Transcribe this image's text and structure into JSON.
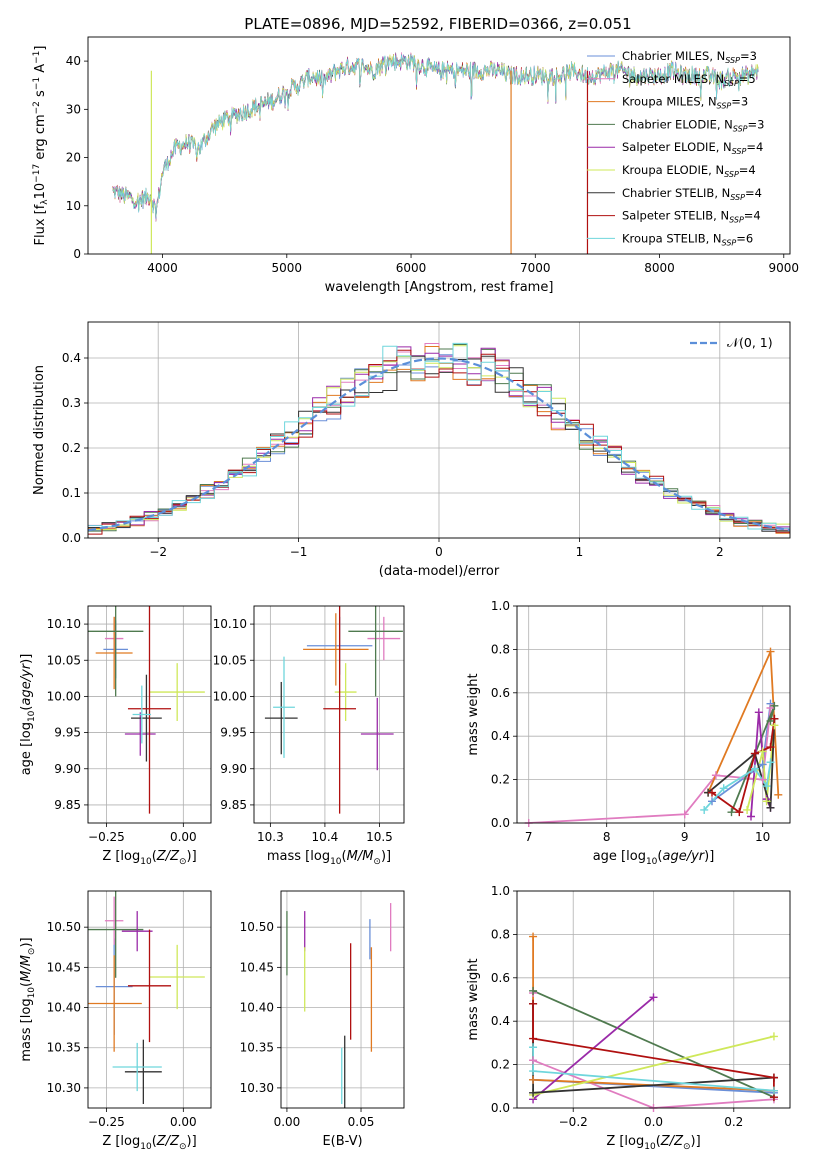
{
  "figure_title": "PLATE=0896, MJD=52592, FIBERID=0366, z=0.051",
  "colors": {
    "Chabrier MILES": "#6a8fd8",
    "Salpeter MILES": "#e07cc0",
    "Kroupa MILES": "#e07a22",
    "Chabrier ELODIE": "#4f7a4f",
    "Salpeter ELODIE": "#9a2aa8",
    "Kroupa ELODIE": "#cfe85a",
    "Chabrier STELIB": "#333333",
    "Salpeter STELIB": "#b01010",
    "Kroupa STELIB": "#6fd6dc"
  },
  "chart_data": [
    {
      "id": "spectrum",
      "type": "line",
      "title": "PLATE=0896, MJD=52592, FIBERID=0366, z=0.051",
      "xlabel": "wavelength [Angstrom, rest frame]",
      "ylabel": "Flux [fλ10⁻¹⁷ erg cm⁻² s⁻¹ A⁻¹]",
      "xlim": [
        3400,
        9050
      ],
      "ylim": [
        0,
        45
      ],
      "xticks": [
        4000,
        5000,
        6000,
        7000,
        8000,
        9000
      ],
      "yticks": [
        0,
        10,
        20,
        30,
        40
      ],
      "grid": false,
      "legend_position": "right",
      "continuum": {
        "x": [
          3600,
          3700,
          3800,
          3900,
          3950,
          4000,
          4100,
          4200,
          4300,
          4400,
          4500,
          4600,
          4700,
          4800,
          4900,
          5000,
          5100,
          5200,
          5300,
          5400,
          5500,
          5600,
          5700,
          5800,
          5900,
          6000,
          6100,
          6200,
          6300,
          6400,
          6500,
          6600,
          6700,
          6800,
          6900,
          7000,
          7100,
          7200,
          7300,
          7400,
          7500,
          7600,
          7700,
          7800,
          7900,
          8000,
          8100,
          8200,
          8300,
          8400,
          8500,
          8600,
          8700,
          8800
        ],
        "y": [
          13,
          12,
          11,
          12,
          9,
          17,
          22,
          23,
          22,
          26,
          28,
          29,
          30,
          31,
          32,
          34,
          35,
          37,
          36,
          38,
          39,
          39,
          38,
          40,
          40,
          40,
          39,
          38,
          38,
          38,
          38,
          38,
          38,
          37,
          37,
          37,
          37,
          37,
          38,
          37,
          37,
          38,
          38,
          37,
          37,
          37,
          38,
          37,
          37,
          37,
          36,
          37,
          37,
          38
        ]
      },
      "series": [
        {
          "name": "Chabrier MILES, N_SSP=3"
        },
        {
          "name": "Salpeter MILES, N_SSP=5"
        },
        {
          "name": "Kroupa MILES, N_SSP=3"
        },
        {
          "name": "Chabrier ELODIE, N_SSP=3"
        },
        {
          "name": "Salpeter ELODIE, N_SSP=4"
        },
        {
          "name": "Kroupa ELODIE, N_SSP=4"
        },
        {
          "name": "Chabrier STELIB, N_SSP=4"
        },
        {
          "name": "Salpeter STELIB, N_SSP=4"
        },
        {
          "name": "Kroupa STELIB, N_SSP=6"
        }
      ]
    },
    {
      "id": "residuals",
      "type": "line",
      "xlabel": "(data-model)/error",
      "ylabel": "Normed distribution",
      "xlim": [
        -2.5,
        2.5
      ],
      "ylim": [
        0,
        0.48
      ],
      "xticks": [
        -2,
        -1,
        0,
        1,
        2
      ],
      "yticks": [
        0.0,
        0.1,
        0.2,
        0.3,
        0.4
      ],
      "grid": true,
      "legend_position": "top-right",
      "series": [
        {
          "name": "N(0,1)",
          "style": "dashed",
          "color": "#5b8fd9"
        }
      ]
    },
    {
      "id": "age-vs-Z",
      "type": "scatter",
      "xlabel": "Z [log10(Z/Z⊙)]",
      "ylabel": "age  [log10(age/yr)]",
      "xlim": [
        -0.31,
        0.09
      ],
      "ylim": [
        9.825,
        10.125
      ],
      "xticks": [
        -0.25,
        0.0
      ],
      "yticks": [
        9.85,
        9.9,
        9.95,
        10.0,
        10.05,
        10.1
      ],
      "grid": true,
      "points": [
        {
          "model": "Chabrier MILES",
          "x": -0.22,
          "xerr": 0.04,
          "y": 10.065,
          "yerr": 0.04
        },
        {
          "model": "Salpeter MILES",
          "x": -0.225,
          "xerr": 0.03,
          "y": 10.08,
          "yerr": 0.03
        },
        {
          "model": "Kroupa MILES",
          "x": -0.225,
          "xerr": 0.06,
          "y": 10.06,
          "yerr": 0.05
        },
        {
          "model": "Chabrier ELODIE",
          "x": -0.22,
          "xerr": 0.09,
          "y": 10.09,
          "yerr": 0.09
        },
        {
          "model": "Salpeter ELODIE",
          "x": -0.14,
          "xerr": 0.05,
          "y": 9.948,
          "yerr": 0.03
        },
        {
          "model": "Kroupa ELODIE",
          "x": -0.02,
          "xerr": 0.09,
          "y": 10.006,
          "yerr": 0.04
        },
        {
          "model": "Chabrier STELIB",
          "x": -0.12,
          "xerr": 0.05,
          "y": 9.97,
          "yerr": 0.06
        },
        {
          "model": "Salpeter STELIB",
          "x": -0.11,
          "xerr": 0.07,
          "y": 9.983,
          "yerr": 0.145
        },
        {
          "model": "Kroupa STELIB",
          "x": -0.135,
          "xerr": 0.03,
          "y": 9.975,
          "yerr": 0.04
        }
      ]
    },
    {
      "id": "age-vs-mass",
      "type": "scatter",
      "xlabel": "mass [log10(M/M⊙)]",
      "ylabel": "",
      "xlim": [
        10.27,
        10.545
      ],
      "ylim": [
        9.825,
        10.125
      ],
      "xticks": [
        10.3,
        10.4,
        10.5
      ],
      "yticks": [
        9.85,
        9.9,
        9.95,
        10.0,
        10.05,
        10.1
      ],
      "grid": true,
      "points": [
        {
          "model": "Chabrier MILES",
          "x": 10.427,
          "xerr": 0.06,
          "y": 10.07,
          "yerr": 0.04
        },
        {
          "model": "Salpeter MILES",
          "x": 10.508,
          "xerr": 0.03,
          "y": 10.08,
          "yerr": 0.03
        },
        {
          "model": "Kroupa MILES",
          "x": 10.42,
          "xerr": 0.06,
          "y": 10.065,
          "yerr": 0.05
        },
        {
          "model": "Chabrier ELODIE",
          "x": 10.493,
          "xerr": 0.05,
          "y": 10.09,
          "yerr": 0.09
        },
        {
          "model": "Salpeter ELODIE",
          "x": 10.496,
          "xerr": 0.03,
          "y": 9.948,
          "yerr": 0.05
        },
        {
          "model": "Kroupa ELODIE",
          "x": 10.438,
          "xerr": 0.02,
          "y": 10.006,
          "yerr": 0.04
        },
        {
          "model": "Chabrier STELIB",
          "x": 10.32,
          "xerr": 0.03,
          "y": 9.97,
          "yerr": 0.05
        },
        {
          "model": "Salpeter STELIB",
          "x": 10.427,
          "xerr": 0.03,
          "y": 9.983,
          "yerr": 0.145
        },
        {
          "model": "Kroupa STELIB",
          "x": 10.325,
          "xerr": 0.02,
          "y": 9.985,
          "yerr": 0.07
        }
      ]
    },
    {
      "id": "massweight-vs-age",
      "type": "line",
      "xlabel": "age  [log10(age/yr)]",
      "ylabel": "mass weight",
      "xlim": [
        6.85,
        10.35
      ],
      "ylim": [
        0,
        1
      ],
      "xticks": [
        7,
        8,
        9,
        10
      ],
      "yticks": [
        0.0,
        0.2,
        0.4,
        0.6,
        0.8,
        1.0
      ],
      "grid": true,
      "series": [
        {
          "name": "Chabrier MILES",
          "x": [
            9.35,
            10.0,
            10.1
          ],
          "y": [
            0.1,
            0.27,
            0.55
          ]
        },
        {
          "name": "Salpeter MILES",
          "x": [
            7.0,
            9.0,
            9.4,
            10.0,
            10.1
          ],
          "y": [
            0.0,
            0.04,
            0.22,
            0.2,
            0.53
          ]
        },
        {
          "name": "Kroupa MILES",
          "x": [
            9.3,
            10.1,
            10.2
          ],
          "y": [
            0.14,
            0.79,
            0.13
          ]
        },
        {
          "name": "Chabrier ELODIE",
          "x": [
            9.6,
            10.15,
            10.1
          ],
          "y": [
            0.05,
            0.54,
            0.47
          ]
        },
        {
          "name": "Salpeter ELODIE",
          "x": [
            9.85,
            9.95,
            10.05,
            10.1
          ],
          "y": [
            0.03,
            0.51,
            0.11,
            0.07
          ]
        },
        {
          "name": "Kroupa ELODIE",
          "x": [
            9.8,
            10.0,
            10.05,
            10.15
          ],
          "y": [
            0.06,
            0.33,
            0.1,
            0.45
          ]
        },
        {
          "name": "Chabrier STELIB",
          "x": [
            9.3,
            9.9,
            10.1,
            10.15
          ],
          "y": [
            0.14,
            0.32,
            0.07,
            0.48
          ]
        },
        {
          "name": "Salpeter STELIB",
          "x": [
            9.35,
            9.7,
            9.9,
            10.1,
            10.15
          ],
          "y": [
            0.14,
            0.05,
            0.32,
            0.35,
            0.48
          ]
        },
        {
          "name": "Kroupa STELIB",
          "x": [
            9.25,
            9.5,
            9.9,
            10.05,
            10.1
          ],
          "y": [
            0.06,
            0.16,
            0.25,
            0.17,
            0.28
          ]
        }
      ]
    },
    {
      "id": "mass-vs-Z",
      "type": "scatter",
      "xlabel": "Z [log10(Z/Z⊙)]",
      "ylabel": "mass [log10(M/M⊙)]",
      "xlim": [
        -0.31,
        0.09
      ],
      "ylim": [
        10.275,
        10.545
      ],
      "xticks": [
        -0.25,
        0.0
      ],
      "yticks": [
        10.3,
        10.35,
        10.4,
        10.45,
        10.5
      ],
      "grid": true,
      "points": [
        {
          "model": "Chabrier MILES",
          "x": -0.225,
          "xerr": 0.06,
          "y": 10.426,
          "yerr": 0.06
        },
        {
          "model": "Salpeter MILES",
          "x": -0.225,
          "xerr": 0.03,
          "y": 10.508,
          "yerr": 0.03
        },
        {
          "model": "Kroupa MILES",
          "x": -0.225,
          "xerr": 0.09,
          "y": 10.405,
          "yerr": 0.06
        },
        {
          "model": "Chabrier ELODIE",
          "x": -0.22,
          "xerr": 0.09,
          "y": 10.497,
          "yerr": 0.06
        },
        {
          "model": "Salpeter ELODIE",
          "x": -0.15,
          "xerr": 0.05,
          "y": 10.495,
          "yerr": 0.025
        },
        {
          "model": "Kroupa ELODIE",
          "x": -0.02,
          "xerr": 0.09,
          "y": 10.438,
          "yerr": 0.04
        },
        {
          "model": "Chabrier STELIB",
          "x": -0.13,
          "xerr": 0.06,
          "y": 10.32,
          "yerr": 0.04
        },
        {
          "model": "Salpeter STELIB",
          "x": -0.11,
          "xerr": 0.07,
          "y": 10.427,
          "yerr": 0.07
        },
        {
          "model": "Kroupa STELIB",
          "x": -0.15,
          "xerr": 0.08,
          "y": 10.326,
          "yerr": 0.03
        }
      ]
    },
    {
      "id": "mass-vs-EBV",
      "type": "scatter",
      "xlabel": "E(B-V)",
      "ylabel": "",
      "xlim": [
        -0.004,
        0.079
      ],
      "ylim": [
        10.275,
        10.545
      ],
      "xticks": [
        0.0,
        0.05
      ],
      "yticks": [
        10.3,
        10.35,
        10.4,
        10.45,
        10.5
      ],
      "grid": true,
      "points": [
        {
          "model": "Chabrier MILES",
          "x": 0.056,
          "y": 10.485,
          "yerr": 0.025
        },
        {
          "model": "Salpeter MILES",
          "x": 0.07,
          "y": 10.5,
          "yerr": 0.03
        },
        {
          "model": "Kroupa MILES",
          "x": 0.057,
          "y": 10.41,
          "yerr": 0.065
        },
        {
          "model": "Chabrier ELODIE",
          "x": 0.0,
          "y": 10.48,
          "yerr": 0.04
        },
        {
          "model": "Salpeter ELODIE",
          "x": 0.012,
          "y": 10.495,
          "yerr": 0.025
        },
        {
          "model": "Kroupa ELODIE",
          "x": 0.012,
          "y": 10.435,
          "yerr": 0.04
        },
        {
          "model": "Chabrier STELIB",
          "x": 0.039,
          "y": 10.32,
          "yerr": 0.045
        },
        {
          "model": "Salpeter STELIB",
          "x": 0.043,
          "y": 10.42,
          "yerr": 0.06
        },
        {
          "model": "Kroupa STELIB",
          "x": 0.037,
          "y": 10.315,
          "yerr": 0.035
        }
      ]
    },
    {
      "id": "massweight-vs-Z",
      "type": "line",
      "xlabel": "Z [log10(Z/Z⊙)]",
      "ylabel": "mass weight",
      "xlim": [
        -0.34,
        0.34
      ],
      "ylim": [
        0,
        1
      ],
      "xticks": [
        -0.2,
        0.0,
        0.2
      ],
      "yticks": [
        0.0,
        0.2,
        0.4,
        0.6,
        0.8,
        1.0
      ],
      "grid": true,
      "series": [
        {
          "name": "Chabrier MILES",
          "x": [
            -0.3,
            0.3
          ],
          "y": [
            0.13,
            0.07
          ]
        },
        {
          "name": "Salpeter MILES",
          "x": [
            -0.3,
            -0.3,
            0.0,
            0.3
          ],
          "y": [
            0.53,
            0.22,
            0.0,
            0.04
          ]
        },
        {
          "name": "Kroupa MILES",
          "x": [
            -0.3,
            -0.3,
            0.3
          ],
          "y": [
            0.79,
            0.13,
            0.08
          ]
        },
        {
          "name": "Chabrier ELODIE",
          "x": [
            -0.3,
            0.3
          ],
          "y": [
            0.54,
            0.05
          ]
        },
        {
          "name": "Salpeter ELODIE",
          "x": [
            -0.3,
            0.0
          ],
          "y": [
            0.04,
            0.51
          ]
        },
        {
          "name": "Kroupa ELODIE",
          "x": [
            -0.3,
            0.3
          ],
          "y": [
            0.06,
            0.33
          ]
        },
        {
          "name": "Chabrier STELIB",
          "x": [
            -0.3,
            -0.3,
            0.3
          ],
          "y": [
            0.48,
            0.07,
            0.14
          ]
        },
        {
          "name": "Salpeter STELIB",
          "x": [
            -0.3,
            -0.3,
            0.3,
            0.3
          ],
          "y": [
            0.48,
            0.32,
            0.14,
            0.05
          ]
        },
        {
          "name": "Kroupa STELIB",
          "x": [
            -0.3,
            -0.3,
            0.3
          ],
          "y": [
            0.28,
            0.17,
            0.08
          ]
        }
      ]
    }
  ]
}
